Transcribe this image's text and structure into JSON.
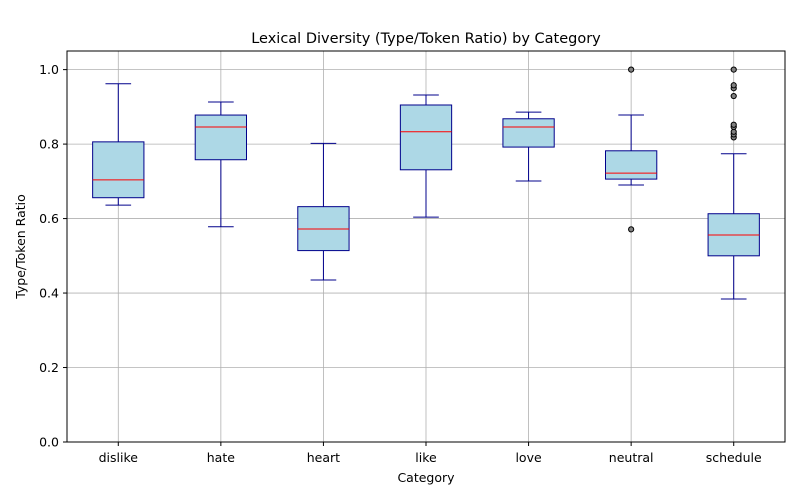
{
  "chart_data": {
    "type": "box",
    "title": "Lexical Diversity (Type/Token Ratio) by Category",
    "xlabel": "Category",
    "ylabel": "Type/Token Ratio",
    "ylim": [
      0,
      1.05
    ],
    "yticks": [
      0.0,
      0.2,
      0.4,
      0.6,
      0.8,
      1.0
    ],
    "ytick_labels": [
      "0.0",
      "0.2",
      "0.4",
      "0.6",
      "0.8",
      "1.0"
    ],
    "grid": true,
    "colors": {
      "box_fill": "#add8e6",
      "box_edge": "#00008b",
      "median": "#ff0000",
      "grid": "#b0b0b0",
      "outlier_fill": "#808080"
    },
    "categories": [
      "dislike",
      "hate",
      "heart",
      "like",
      "love",
      "neutral",
      "schedule"
    ],
    "boxes": [
      {
        "category": "dislike",
        "whisker_low": 0.636,
        "q1": 0.656,
        "median": 0.704,
        "q3": 0.806,
        "whisker_high": 0.962,
        "outliers": []
      },
      {
        "category": "hate",
        "whisker_low": 0.578,
        "q1": 0.758,
        "median": 0.846,
        "q3": 0.878,
        "whisker_high": 0.913,
        "outliers": []
      },
      {
        "category": "heart",
        "whisker_low": 0.435,
        "q1": 0.514,
        "median": 0.572,
        "q3": 0.632,
        "whisker_high": 0.802,
        "outliers": []
      },
      {
        "category": "like",
        "whisker_low": 0.604,
        "q1": 0.731,
        "median": 0.833,
        "q3": 0.905,
        "whisker_high": 0.932,
        "outliers": []
      },
      {
        "category": "love",
        "whisker_low": 0.701,
        "q1": 0.792,
        "median": 0.846,
        "q3": 0.868,
        "whisker_high": 0.886,
        "outliers": []
      },
      {
        "category": "neutral",
        "whisker_low": 0.69,
        "q1": 0.706,
        "median": 0.722,
        "q3": 0.782,
        "whisker_high": 0.878,
        "outliers": [
          0.571,
          1.0
        ]
      },
      {
        "category": "schedule",
        "whisker_low": 0.384,
        "q1": 0.5,
        "median": 0.556,
        "q3": 0.613,
        "whisker_high": 0.774,
        "outliers": [
          0.818,
          0.826,
          0.833,
          0.846,
          0.852,
          0.929,
          0.95,
          0.958,
          1.0
        ]
      }
    ]
  }
}
